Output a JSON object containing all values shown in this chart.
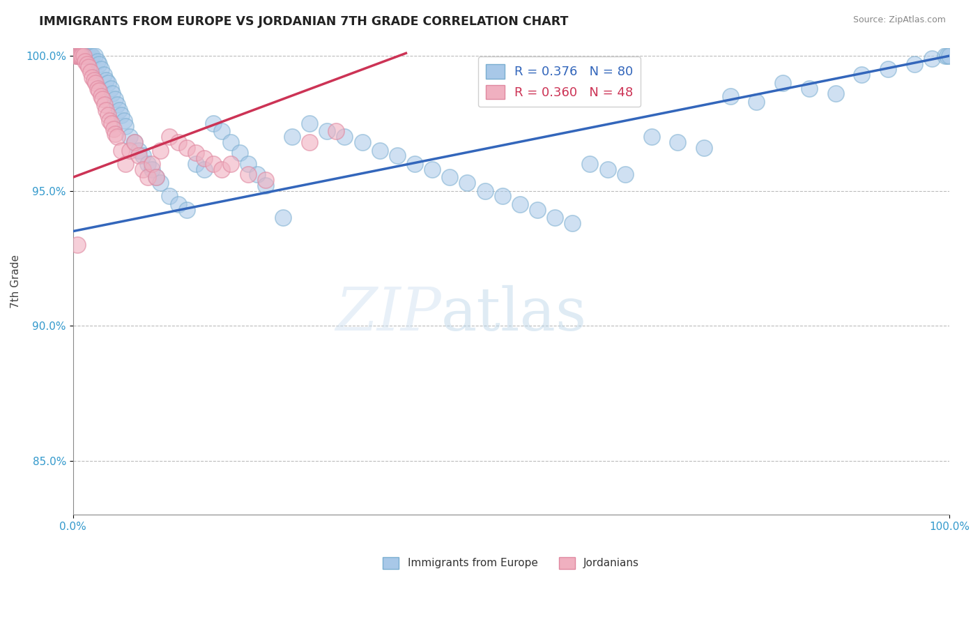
{
  "title": "IMMIGRANTS FROM EUROPE VS JORDANIAN 7TH GRADE CORRELATION CHART",
  "source": "Source: ZipAtlas.com",
  "ylabel": "7th Grade",
  "ylim": [
    0.83,
    1.003
  ],
  "yticks": [
    0.85,
    0.9,
    0.95,
    1.0
  ],
  "ytick_labels": [
    "85.0%",
    "90.0%",
    "95.0%",
    "100.0%"
  ],
  "xlim": [
    0.0,
    1.0
  ],
  "xticks": [
    0.0,
    1.0
  ],
  "xtick_labels": [
    "0.0%",
    "100.0%"
  ],
  "legend_labels": [
    "Immigrants from Europe",
    "Jordanians"
  ],
  "blue_color": "#a8c8e8",
  "blue_edge_color": "#7aaed0",
  "pink_color": "#f0b0c0",
  "pink_edge_color": "#e088a0",
  "blue_line_color": "#3366bb",
  "pink_line_color": "#cc3355",
  "R_blue": 0.376,
  "N_blue": 80,
  "R_pink": 0.36,
  "N_pink": 48,
  "blue_line_x0": 0.0,
  "blue_line_y0": 0.935,
  "blue_line_x1": 1.0,
  "blue_line_y1": 1.0,
  "pink_line_x0": 0.0,
  "pink_line_y0": 0.955,
  "pink_line_x1": 0.38,
  "pink_line_y1": 1.001,
  "blue_x": [
    0.005,
    0.007,
    0.008,
    0.01,
    0.012,
    0.015,
    0.018,
    0.02,
    0.022,
    0.025,
    0.028,
    0.03,
    0.032,
    0.035,
    0.038,
    0.04,
    0.043,
    0.045,
    0.048,
    0.05,
    0.053,
    0.055,
    0.058,
    0.06,
    0.065,
    0.07,
    0.075,
    0.08,
    0.085,
    0.09,
    0.095,
    0.1,
    0.11,
    0.12,
    0.13,
    0.14,
    0.15,
    0.16,
    0.17,
    0.18,
    0.19,
    0.2,
    0.21,
    0.22,
    0.25,
    0.27,
    0.29,
    0.31,
    0.33,
    0.35,
    0.37,
    0.39,
    0.41,
    0.43,
    0.45,
    0.47,
    0.49,
    0.51,
    0.53,
    0.55,
    0.57,
    0.59,
    0.61,
    0.63,
    0.66,
    0.69,
    0.72,
    0.75,
    0.78,
    0.81,
    0.84,
    0.87,
    0.9,
    0.93,
    0.96,
    0.98,
    0.995,
    0.998,
    1.0,
    0.24
  ],
  "blue_y": [
    1.0,
    1.0,
    1.0,
    1.0,
    1.0,
    1.0,
    1.0,
    1.0,
    1.0,
    1.0,
    0.998,
    0.997,
    0.995,
    0.993,
    0.991,
    0.99,
    0.988,
    0.986,
    0.984,
    0.982,
    0.98,
    0.978,
    0.976,
    0.974,
    0.97,
    0.968,
    0.965,
    0.963,
    0.96,
    0.958,
    0.955,
    0.953,
    0.948,
    0.945,
    0.943,
    0.96,
    0.958,
    0.975,
    0.972,
    0.968,
    0.964,
    0.96,
    0.956,
    0.952,
    0.97,
    0.975,
    0.972,
    0.97,
    0.968,
    0.965,
    0.963,
    0.96,
    0.958,
    0.955,
    0.953,
    0.95,
    0.948,
    0.945,
    0.943,
    0.94,
    0.938,
    0.96,
    0.958,
    0.956,
    0.97,
    0.968,
    0.966,
    0.985,
    0.983,
    0.99,
    0.988,
    0.986,
    0.993,
    0.995,
    0.997,
    0.999,
    1.0,
    1.0,
    1.0,
    0.94
  ],
  "pink_x": [
    0.003,
    0.005,
    0.007,
    0.008,
    0.01,
    0.012,
    0.014,
    0.016,
    0.018,
    0.02,
    0.022,
    0.024,
    0.026,
    0.028,
    0.03,
    0.032,
    0.034,
    0.036,
    0.038,
    0.04,
    0.042,
    0.044,
    0.046,
    0.048,
    0.05,
    0.055,
    0.06,
    0.065,
    0.07,
    0.075,
    0.08,
    0.085,
    0.09,
    0.095,
    0.1,
    0.11,
    0.12,
    0.13,
    0.14,
    0.15,
    0.16,
    0.17,
    0.18,
    0.2,
    0.22,
    0.27,
    0.3,
    0.005
  ],
  "pink_y": [
    1.0,
    1.0,
    1.0,
    1.0,
    1.0,
    1.0,
    0.998,
    0.997,
    0.996,
    0.994,
    0.992,
    0.991,
    0.99,
    0.988,
    0.987,
    0.985,
    0.984,
    0.982,
    0.98,
    0.978,
    0.976,
    0.975,
    0.973,
    0.971,
    0.97,
    0.965,
    0.96,
    0.965,
    0.968,
    0.963,
    0.958,
    0.955,
    0.96,
    0.955,
    0.965,
    0.97,
    0.968,
    0.966,
    0.964,
    0.962,
    0.96,
    0.958,
    0.96,
    0.956,
    0.954,
    0.968,
    0.972,
    0.93
  ]
}
